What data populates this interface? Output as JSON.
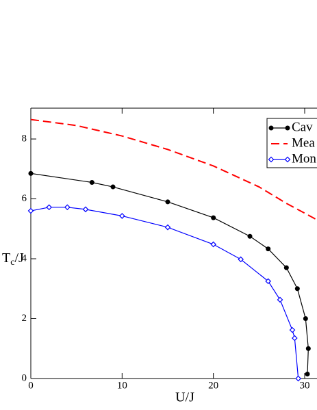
{
  "chart_data": {
    "type": "line",
    "xlabel": "U/J",
    "ylabel": [
      "T",
      "c",
      "/J"
    ],
    "xlim": [
      0,
      31.35
    ],
    "ylim": [
      0,
      9.03
    ],
    "xticks": [
      0,
      10,
      20,
      30
    ],
    "yticks": [
      0,
      2,
      4,
      6,
      8
    ],
    "series": [
      {
        "name": "Cav",
        "color": "#000000",
        "style": "solid",
        "marker": "circle",
        "x": [
          0,
          6.7,
          9,
          15,
          20,
          24,
          26,
          28,
          29.2,
          30.1,
          30.4,
          30.3
        ],
        "values": [
          6.85,
          6.55,
          6.4,
          5.9,
          5.37,
          4.75,
          4.33,
          3.7,
          3.0,
          2.0,
          1.0,
          0.15
        ]
      },
      {
        "name": "Mea",
        "color": "#ff0000",
        "style": "dashed",
        "marker": "none",
        "x": [
          0,
          5,
          10,
          15,
          20,
          25,
          28,
          31.35
        ],
        "values": [
          8.65,
          8.45,
          8.1,
          7.65,
          7.1,
          6.4,
          5.85,
          5.3
        ]
      },
      {
        "name": "Mon",
        "color": "#0000ff",
        "style": "solid",
        "marker": "diamond",
        "x": [
          0,
          2,
          4,
          6,
          10,
          15,
          20,
          23,
          26,
          27.3,
          28.65,
          28.9,
          29.3
        ],
        "values": [
          5.6,
          5.72,
          5.72,
          5.65,
          5.43,
          5.05,
          4.48,
          3.98,
          3.25,
          2.63,
          1.62,
          1.35,
          0
        ]
      }
    ]
  }
}
